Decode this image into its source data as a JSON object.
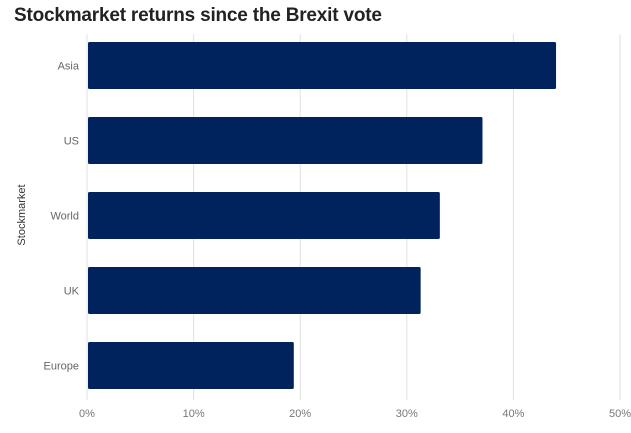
{
  "chart_data": {
    "type": "bar",
    "orientation": "horizontal",
    "title": "Stockmarket returns since the Brexit vote",
    "ylabel": "Stockmarket",
    "xlabel": "",
    "categories": [
      "Asia",
      "US",
      "World",
      "UK",
      "Europe"
    ],
    "values": [
      44.0,
      37.1,
      33.1,
      31.3,
      19.4
    ],
    "xlim": [
      0,
      50
    ],
    "xticks": [
      "0%",
      "10%",
      "20%",
      "30%",
      "40%",
      "50%"
    ],
    "grid": true,
    "bar_color": "#00235e",
    "grid_color": "#e0e0e0"
  }
}
